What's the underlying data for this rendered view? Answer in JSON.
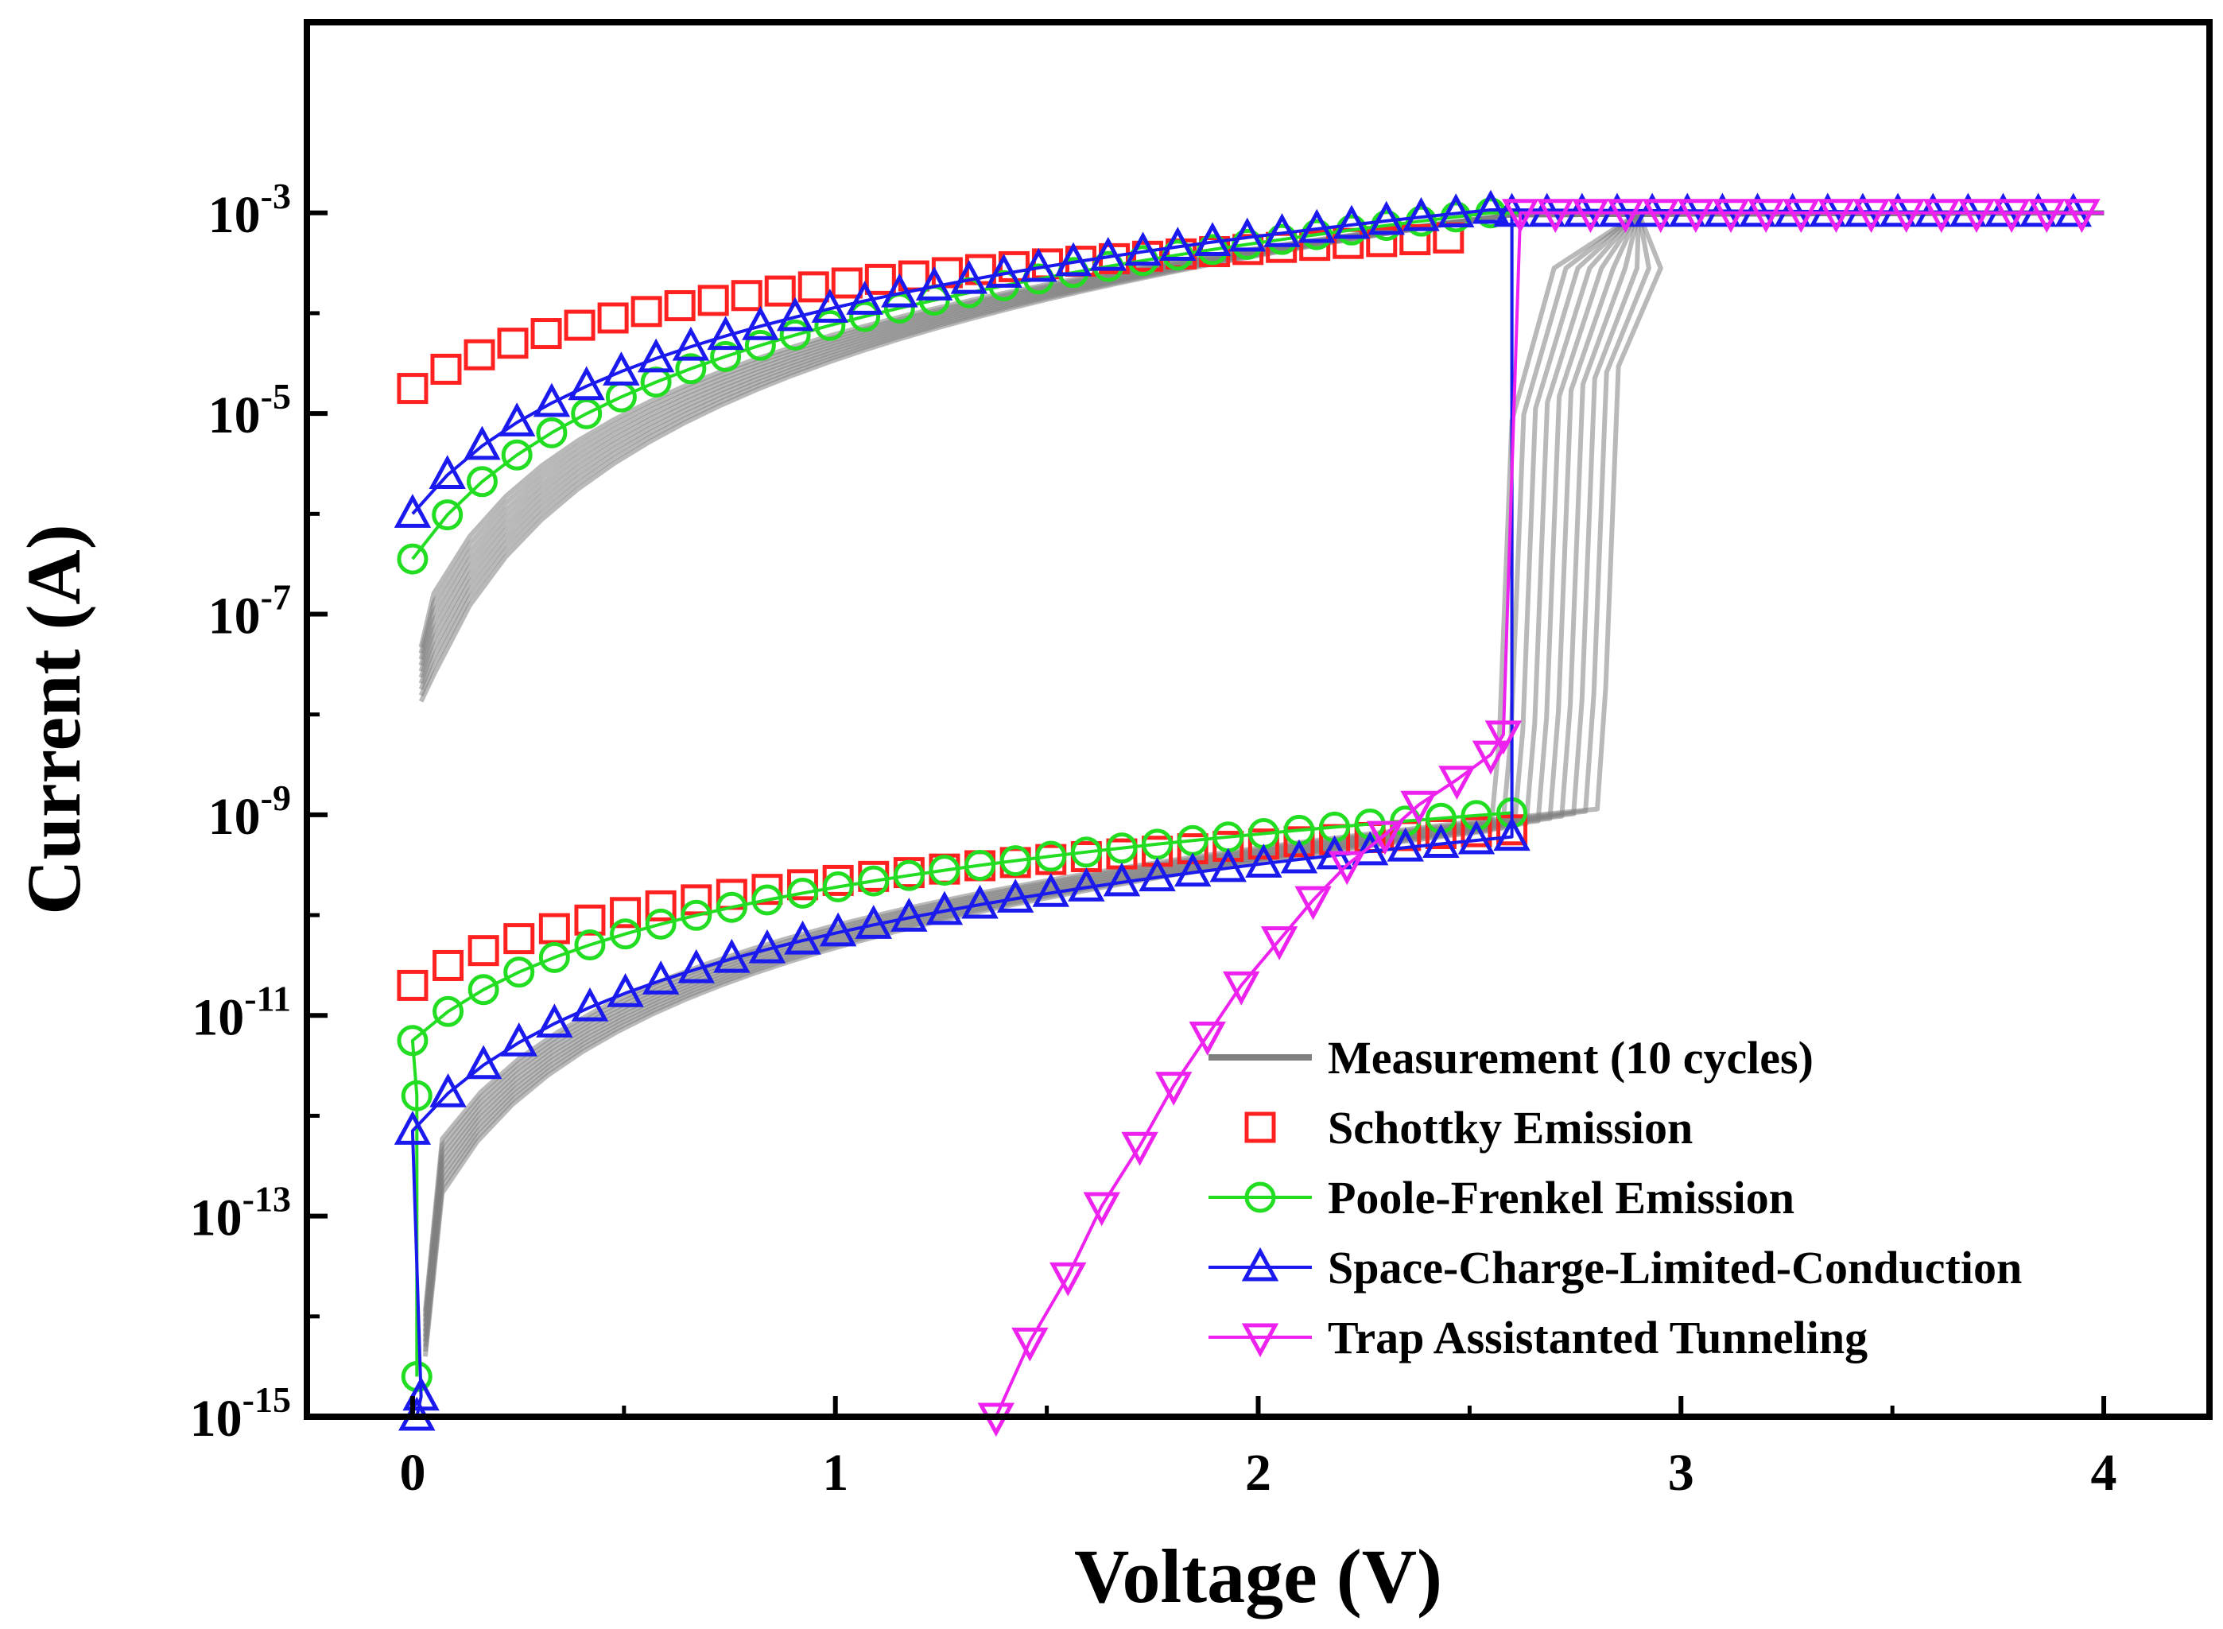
{
  "chart_data": {
    "type": "line",
    "xlabel": "Voltage (V)",
    "ylabel": "Current (A)",
    "xlim": [
      -0.25,
      4.25
    ],
    "ylim_log10": [
      -15,
      -1.1
    ],
    "yscale": "log",
    "x_ticks": [
      0,
      1,
      2,
      3,
      4
    ],
    "x_tick_labels": [
      "0",
      "1",
      "2",
      "3",
      "4"
    ],
    "y_ticks_log10": [
      -3,
      -5,
      -7,
      -9,
      -11,
      -13,
      -15
    ],
    "y_tick_labels": [
      {
        "base": "10",
        "exp": "-3"
      },
      {
        "base": "10",
        "exp": "-5"
      },
      {
        "base": "10",
        "exp": "-7"
      },
      {
        "base": "10",
        "exp": "-9"
      },
      {
        "base": "10",
        "exp": "-11"
      },
      {
        "base": "10",
        "exp": "-13"
      },
      {
        "base": "10",
        "exp": "-15"
      }
    ],
    "y_minor_ticks_log10": [
      -4,
      -6,
      -8,
      -10,
      -12,
      -14
    ],
    "legend_position": "bottom-right",
    "series": [
      {
        "name": "Measurement (10 cycles)",
        "color": "#808080",
        "marker": "none",
        "kind": "measurement"
      },
      {
        "name": "Schottky Emission",
        "color": "#ff2020",
        "marker": "square",
        "line": false,
        "hrs_range": [
          0,
          2.6
        ],
        "hrs_log10_range": [
          -10.7,
          -9.15
        ],
        "lrs_range": [
          0,
          2.45
        ],
        "lrs_log10_range": [
          -4.75,
          -3.25
        ]
      },
      {
        "name": "Poole-Frenkel Emission",
        "color": "#22dd22",
        "marker": "circle",
        "line": true,
        "hrs_range": [
          0,
          2.6
        ],
        "hrs_log10_range": [
          -11.25,
          -8.98
        ],
        "lrs_range": [
          0,
          2.55
        ],
        "lrs_log10_range": [
          -6.45,
          -3.0
        ]
      },
      {
        "name": "Space-Charge-Limited-Conduction",
        "color": "#1a1aee",
        "marker": "triangle-up",
        "line": true,
        "hrs_range": [
          0,
          2.6
        ],
        "hrs_log10_range": [
          -12.15,
          -9.22
        ],
        "lrs_range": [
          0,
          2.55
        ],
        "lrs_log10_range": [
          -6.0,
          -2.97
        ]
      },
      {
        "name": "Trap Assistanted Tunneling",
        "color": "#ee22ee",
        "marker": "triangle-down",
        "line": true,
        "x": [
          1.38,
          1.46,
          1.55,
          1.63,
          1.72,
          1.8,
          1.88,
          1.96,
          2.05,
          2.13,
          2.21,
          2.3,
          2.38,
          2.47,
          2.55,
          2.58
        ],
        "log10_y": [
          -15.0,
          -14.25,
          -13.6,
          -12.9,
          -12.3,
          -11.7,
          -11.2,
          -10.7,
          -10.25,
          -9.85,
          -9.5,
          -9.2,
          -8.9,
          -8.65,
          -8.4,
          -8.2
        ],
        "set_x": 2.62,
        "set_log10_y": -3.0,
        "plateau": [
          2.62,
          4.0
        ]
      }
    ]
  }
}
